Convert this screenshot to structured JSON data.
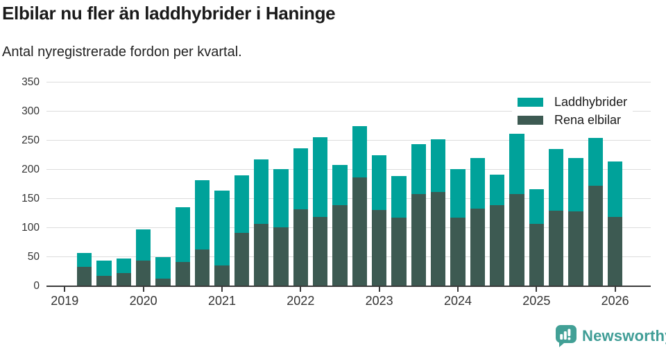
{
  "header": {
    "title": "Elbilar nu fler än laddhybrider i Haninge",
    "subtitle": "Antal nyregistrerade fordon per kvartal."
  },
  "chart_data": {
    "type": "bar",
    "stacked": true,
    "title": "Elbilar nu fler än laddhybrider i Haninge",
    "subtitle": "Antal nyregistrerade fordon per kvartal.",
    "categories": [
      "2019 Q1",
      "2019 Q2",
      "2019 Q3",
      "2019 Q4",
      "2020 Q1",
      "2020 Q2",
      "2020 Q3",
      "2020 Q4",
      "2021 Q1",
      "2021 Q2",
      "2021 Q3",
      "2021 Q4",
      "2022 Q1",
      "2022 Q2",
      "2022 Q3",
      "2022 Q4",
      "2023 Q1",
      "2023 Q2",
      "2023 Q3",
      "2023 Q4",
      "2024 Q1",
      "2024 Q2",
      "2024 Q3",
      "2024 Q4",
      "2025 Q1",
      "2025 Q2",
      "2025 Q3",
      "2025 Q4"
    ],
    "series": [
      {
        "name": "Laddhybrider",
        "color": "#00a29a",
        "values": [
          24,
          26,
          25,
          53,
          37,
          94,
          119,
          128,
          99,
          111,
          100,
          105,
          137,
          69,
          88,
          94,
          71,
          86,
          90,
          83,
          87,
          52,
          104,
          59,
          105,
          92,
          82,
          95
        ]
      },
      {
        "name": "Rena elbilar",
        "color": "#3d5a52",
        "values": [
          32,
          17,
          21,
          43,
          12,
          41,
          62,
          35,
          90,
          106,
          100,
          131,
          118,
          138,
          186,
          130,
          117,
          157,
          161,
          117,
          132,
          138,
          157,
          106,
          129,
          127,
          172,
          118
        ]
      }
    ],
    "stack_bottom_to_top": [
      "Rena elbilar",
      "Laddhybrider"
    ],
    "x_ticks": [
      "2019",
      "2020",
      "2021",
      "2022",
      "2023",
      "2024",
      "2025",
      "2026"
    ],
    "y_ticks": [
      0,
      50,
      100,
      150,
      200,
      250,
      300,
      350
    ],
    "ylim": [
      0,
      350
    ],
    "xlabel": "",
    "ylabel": "",
    "grid": "horizontal",
    "legend_position": "top-right"
  },
  "footer": {
    "brand": "Newsworthy",
    "brand_color": "#3f9d96",
    "logo_color": "#42a096"
  }
}
